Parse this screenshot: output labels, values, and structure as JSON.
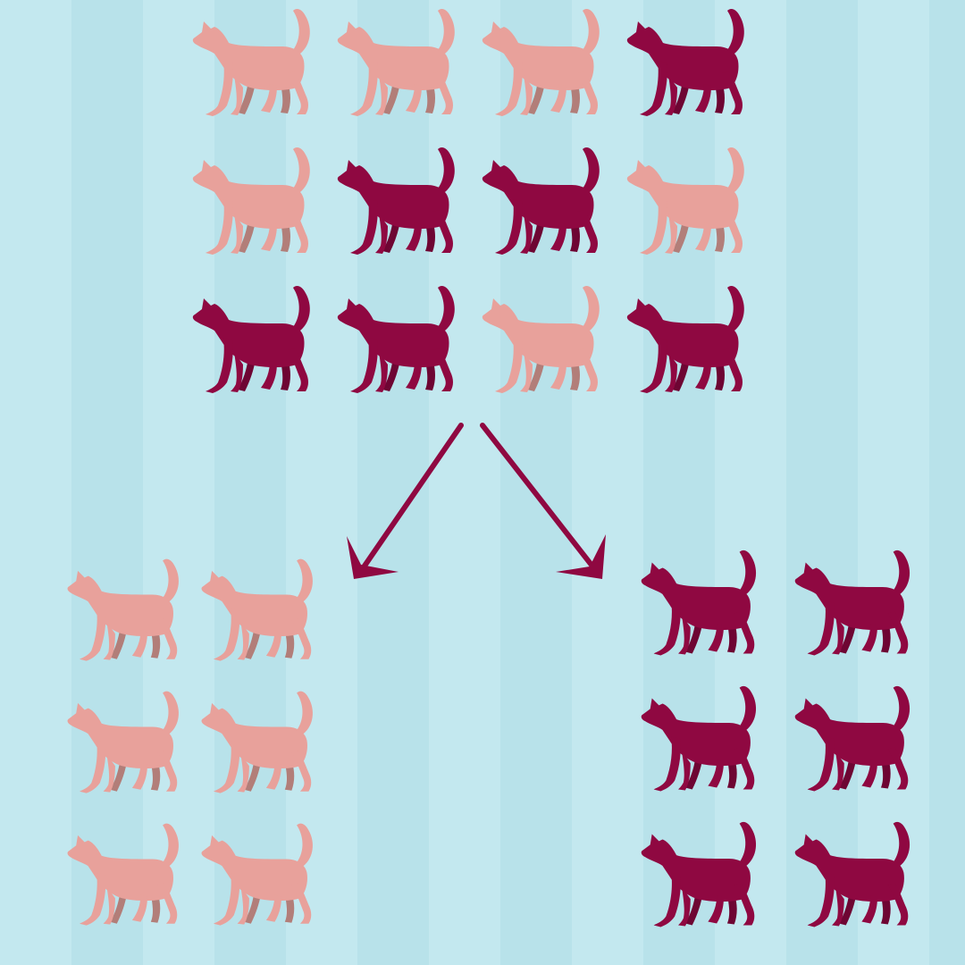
{
  "colors": {
    "background": "#bfe6ee",
    "stripe_light": "#c3e8ef",
    "stripe_dark": "#b8e2ea",
    "light_cat": "#e8a19b",
    "light_cat_far_legs": "#b27e79",
    "dark_cat": "#8f0841",
    "dark_cat_far_legs": "#6e0533",
    "arrow": "#8f0841"
  },
  "groups": {
    "mixed": {
      "rows": [
        [
          "light",
          "light",
          "light",
          "dark"
        ],
        [
          "light",
          "dark",
          "dark",
          "light"
        ],
        [
          "dark",
          "dark",
          "light",
          "dark"
        ]
      ]
    },
    "light_sorted": {
      "rows": [
        [
          "light",
          "light"
        ],
        [
          "light",
          "light"
        ],
        [
          "light",
          "light"
        ]
      ]
    },
    "dark_sorted": {
      "rows": [
        [
          "dark",
          "dark"
        ],
        [
          "dark",
          "dark"
        ],
        [
          "dark",
          "dark"
        ]
      ]
    }
  },
  "arrows": [
    {
      "icon": "arrow-down-left-icon",
      "points_to": "light_sorted"
    },
    {
      "icon": "arrow-down-right-icon",
      "points_to": "dark_sorted"
    }
  ]
}
